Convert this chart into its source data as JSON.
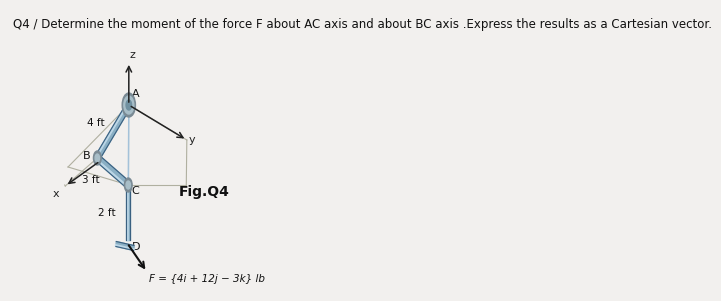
{
  "title": "Q4 / Determine the moment of the force F about AC axis and about BC axis .Express the results as a Cartesian vector.",
  "title_fontsize": 8.5,
  "fig_bg": "#f0f0ee",
  "force_label": "F = {4i + 12j − 3k} lb",
  "fig_label": "Fig.Q4",
  "label_A": "A",
  "label_B": "B",
  "label_C": "C",
  "label_D": "D",
  "label_x": "x",
  "label_y": "y",
  "label_z": "z",
  "dim_4ft": "4 ft",
  "dim_3ft": "3 ft",
  "dim_2ft": "2 ft",
  "pipe_color": "#8aafc4",
  "pipe_dark": "#3a6080",
  "pipe_light": "#c8e0ef",
  "pipe_mid": "#6898b0",
  "frame_color": "#b0b0a0",
  "axis_color": "#222222",
  "text_color": "#111111",
  "joint_outer": "#7a8a94",
  "joint_mid": "#a8bec8",
  "joint_inner": "#7090a0",
  "background": "#f2f0ee"
}
